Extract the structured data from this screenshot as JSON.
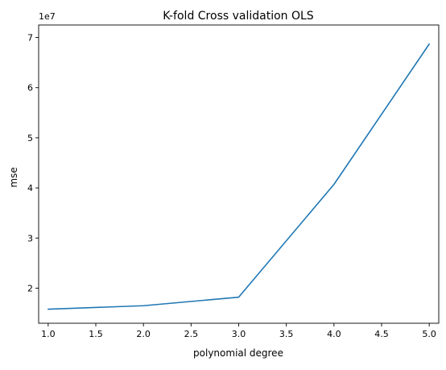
{
  "chart_data": {
    "type": "line",
    "title": "K-fold Cross validation OLS",
    "xlabel": "polynomial degree",
    "ylabel": "mse",
    "y_offset_label": "1e7",
    "xlim": [
      0.9,
      5.1
    ],
    "ylim": [
      1.3,
      7.25
    ],
    "x_ticks": [
      1.0,
      1.5,
      2.0,
      2.5,
      3.0,
      3.5,
      4.0,
      4.5,
      5.0
    ],
    "x_tick_labels": [
      "1.0",
      "1.5",
      "2.0",
      "2.5",
      "3.0",
      "3.5",
      "4.0",
      "4.5",
      "5.0"
    ],
    "y_ticks": [
      2,
      3,
      4,
      5,
      6,
      7
    ],
    "y_tick_labels": [
      "2",
      "3",
      "4",
      "5",
      "6",
      "7"
    ],
    "grid": false,
    "series": [
      {
        "color": "#1f77b4",
        "x": [
          1,
          2,
          3,
          4,
          5
        ],
        "y": [
          1.58,
          1.65,
          1.82,
          4.07,
          6.87
        ]
      }
    ]
  }
}
